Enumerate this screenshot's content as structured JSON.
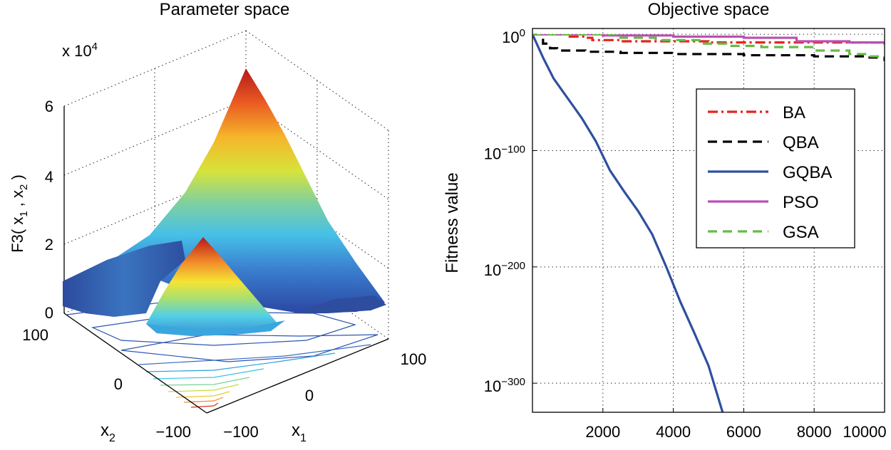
{
  "left_panel": {
    "title": "Parameter space",
    "exponent_label": "x 10",
    "exponent_power": "4",
    "z_label_pre": "F3( x",
    "z_label_sub1": "1",
    "z_label_mid": " , x",
    "z_label_sub2": "2",
    "z_label_post": " )",
    "z_ticks": [
      "0",
      "2",
      "4",
      "6"
    ],
    "x2_ticks": [
      "100",
      "0",
      "−100"
    ],
    "x1_ticks": [
      "−100",
      "0",
      "100"
    ],
    "x1_label": "x",
    "x1_sub": "1",
    "x2_label": "x",
    "x2_sub": "2"
  },
  "chart_data": [
    {
      "type": "surface",
      "title": "Parameter space",
      "function": "F3(x1, x2)",
      "zlabel": "F3( x1 , x2 )",
      "zlim": [
        0,
        6
      ],
      "z_multiplier": "x 10^4",
      "z_ticks": [
        0,
        2,
        4,
        6
      ],
      "xlabel": "x1",
      "ylabel": "x2",
      "x_ticks": [
        -100,
        0,
        100
      ],
      "y_ticks": [
        -100,
        0,
        100
      ],
      "peak_z": 5.5
    },
    {
      "type": "line",
      "title": "Objective space",
      "xlabel": "",
      "ylabel": "Fitness value",
      "yscale": "log",
      "xlim": [
        0,
        10000
      ],
      "x_ticks": [
        2000,
        4000,
        6000,
        8000,
        10000
      ],
      "y_exponent_ticks": [
        0,
        -100,
        -200,
        -300
      ],
      "y_exponent_range": [
        -325,
        5
      ],
      "grid": true,
      "legend_position": "top-right",
      "series": [
        {
          "name": "BA",
          "color": "#e8221c",
          "dash": "14,5,3,5",
          "x": [
            0,
            1000,
            1500,
            1700,
            2500,
            3500,
            5000,
            7000,
            9000,
            10000
          ],
          "y_exp": [
            0,
            -2,
            -3,
            -5,
            -6,
            -6,
            -7,
            -7,
            -7,
            -8
          ]
        },
        {
          "name": "QBA",
          "color": "#000000",
          "dash": "13,8",
          "x": [
            0,
            300,
            500,
            700,
            1500,
            2500,
            4000,
            6000,
            8000,
            9500,
            10000
          ],
          "y_exp": [
            0,
            -8,
            -12,
            -14,
            -15,
            -16,
            -17,
            -18,
            -19,
            -20,
            -23
          ]
        },
        {
          "name": "GQBA",
          "color": "#2f4f9f",
          "dash": "",
          "x": [
            0,
            300,
            600,
            1000,
            1400,
            1800,
            2200,
            2600,
            3000,
            3400,
            3800,
            4200,
            4600,
            5000,
            5400
          ],
          "y_exp": [
            0,
            -20,
            -38,
            -55,
            -72,
            -92,
            -117,
            -135,
            -152,
            -172,
            -200,
            -230,
            -257,
            -285,
            -325
          ]
        },
        {
          "name": "PSO",
          "color": "#b94fb2",
          "dash": "",
          "x": [
            0,
            2000,
            4000,
            6000,
            7500,
            9000,
            10000
          ],
          "y_exp": [
            0,
            -1,
            -2,
            -3,
            -6,
            -7,
            -9
          ]
        },
        {
          "name": "GSA",
          "color": "#66bb44",
          "dash": "13,8",
          "x": [
            0,
            1500,
            2500,
            3500,
            4800,
            5500,
            6500,
            8000,
            9000,
            9600,
            10000
          ],
          "y_exp": [
            0,
            0,
            -3,
            -5,
            -8,
            -10,
            -11,
            -14,
            -17,
            -19,
            -20
          ]
        }
      ]
    }
  ],
  "right_panel": {
    "title": "Objective space",
    "ylabel": "Fitness value",
    "x_ticks": [
      "2000",
      "4000",
      "6000",
      "8000",
      "10000"
    ],
    "y_tick_base": "10",
    "y_tick_exps": [
      "0",
      "−100",
      "−200",
      "−300"
    ],
    "legend": [
      "BA",
      "QBA",
      "GQBA",
      "PSO",
      "GSA"
    ]
  },
  "colors": {
    "axis": "#000000",
    "grid": "#333333",
    "surface_low": "#2a3f9a",
    "surface_high": "#b01818"
  }
}
